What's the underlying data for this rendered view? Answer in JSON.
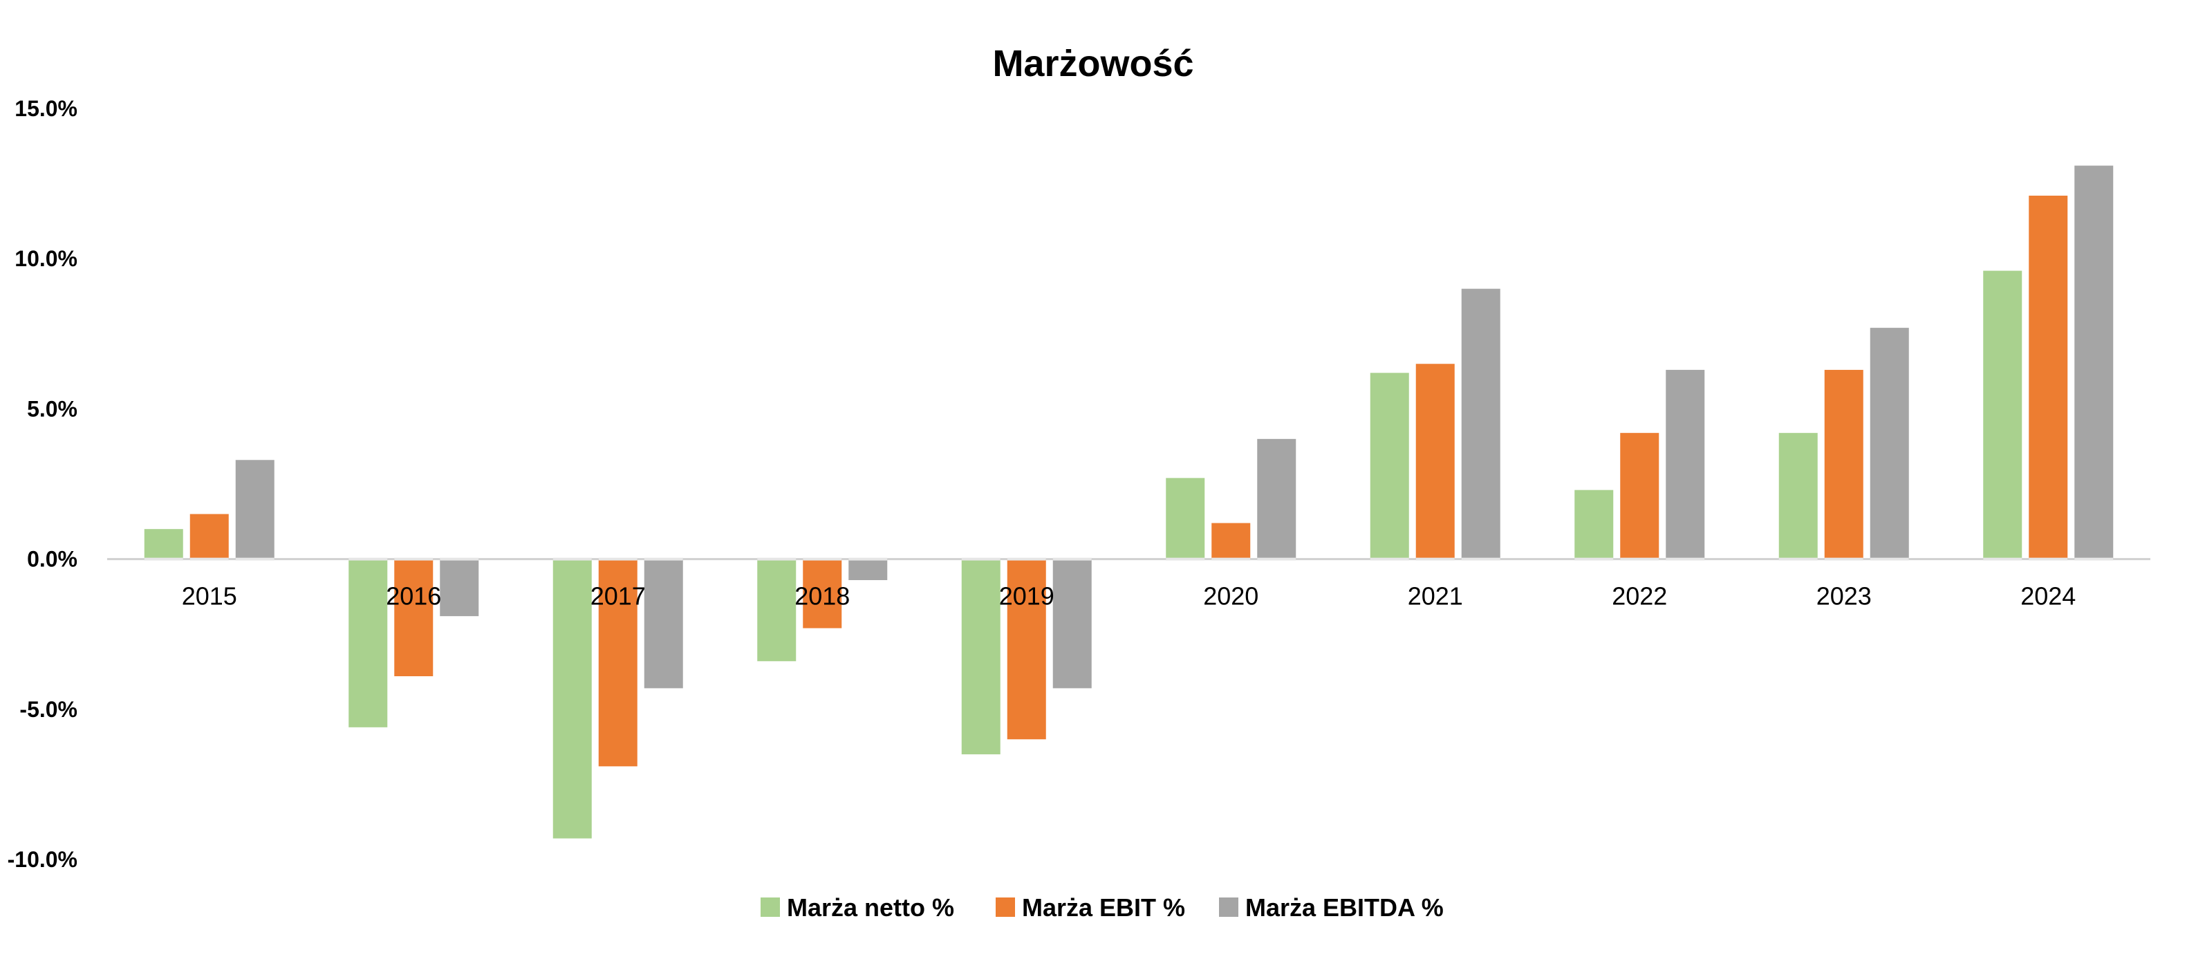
{
  "chart_data": {
    "type": "bar",
    "title": "Marżowość",
    "xlabel": "",
    "ylabel": "",
    "categories": [
      "2015",
      "2016",
      "2017",
      "2018",
      "2019",
      "2020",
      "2021",
      "2022",
      "2023",
      "2024"
    ],
    "ylim": [
      -10,
      15
    ],
    "yticks": [
      15,
      10,
      5,
      0,
      -5,
      -10
    ],
    "ytick_labels": [
      "15.0%",
      "10.0%",
      "5.0%",
      "0.0%",
      "-5.0%",
      "-10.0%"
    ],
    "grid": false,
    "legend_position": "bottom",
    "series": [
      {
        "name": "Marża netto %",
        "color": "#a9d18e",
        "values": [
          1.0,
          -5.6,
          -9.3,
          -3.4,
          -6.5,
          2.7,
          6.2,
          2.3,
          4.2,
          9.6
        ]
      },
      {
        "name": "Marża EBIT %",
        "color": "#ed7d31",
        "values": [
          1.5,
          -3.9,
          -6.9,
          -2.3,
          -6.0,
          1.2,
          6.5,
          4.2,
          6.3,
          12.1
        ]
      },
      {
        "name": "Marża EBITDA %",
        "color": "#a5a5a5",
        "values": [
          3.3,
          -1.9,
          -4.3,
          -0.7,
          -4.3,
          4.0,
          9.0,
          6.3,
          7.7,
          13.1
        ]
      }
    ]
  }
}
